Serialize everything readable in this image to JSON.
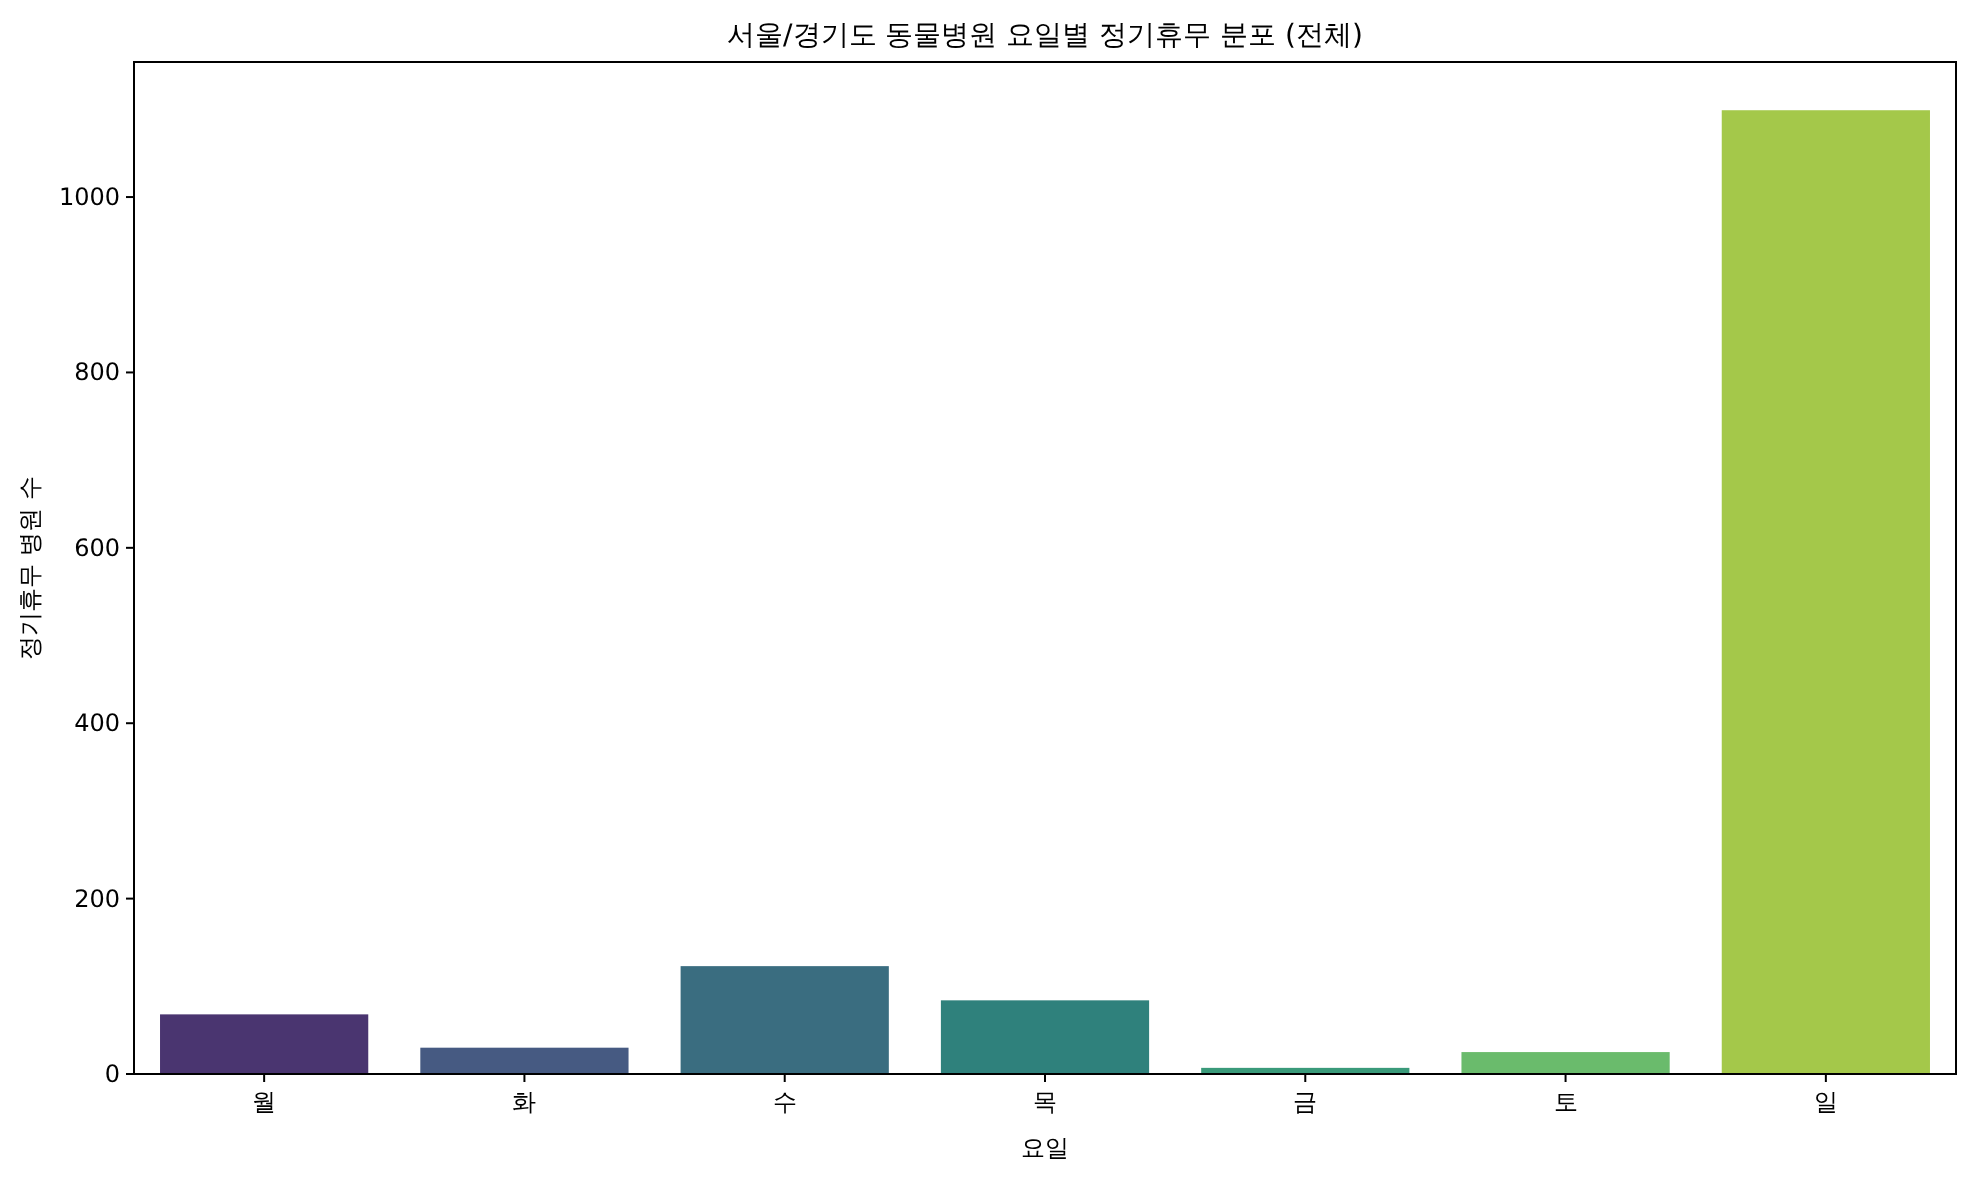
{
  "chart_data": {
    "type": "bar",
    "title": "서울/경기도 동물병원 요일별 정기휴무 분포 (전체)",
    "xlabel": "요일",
    "ylabel": "정기휴무 병원 수",
    "categories": [
      "월",
      "화",
      "수",
      "목",
      "금",
      "토",
      "일"
    ],
    "values": [
      68,
      30,
      123,
      84,
      7,
      25,
      1099
    ],
    "colors": [
      "#4a3570",
      "#465a82",
      "#3a6d80",
      "#2f817c",
      "#3a9a7a",
      "#6abb6c",
      "#a4c84a"
    ],
    "ylim": [
      0,
      1154
    ],
    "yticks": [
      0,
      200,
      400,
      600,
      800,
      1000
    ],
    "grid": false
  }
}
